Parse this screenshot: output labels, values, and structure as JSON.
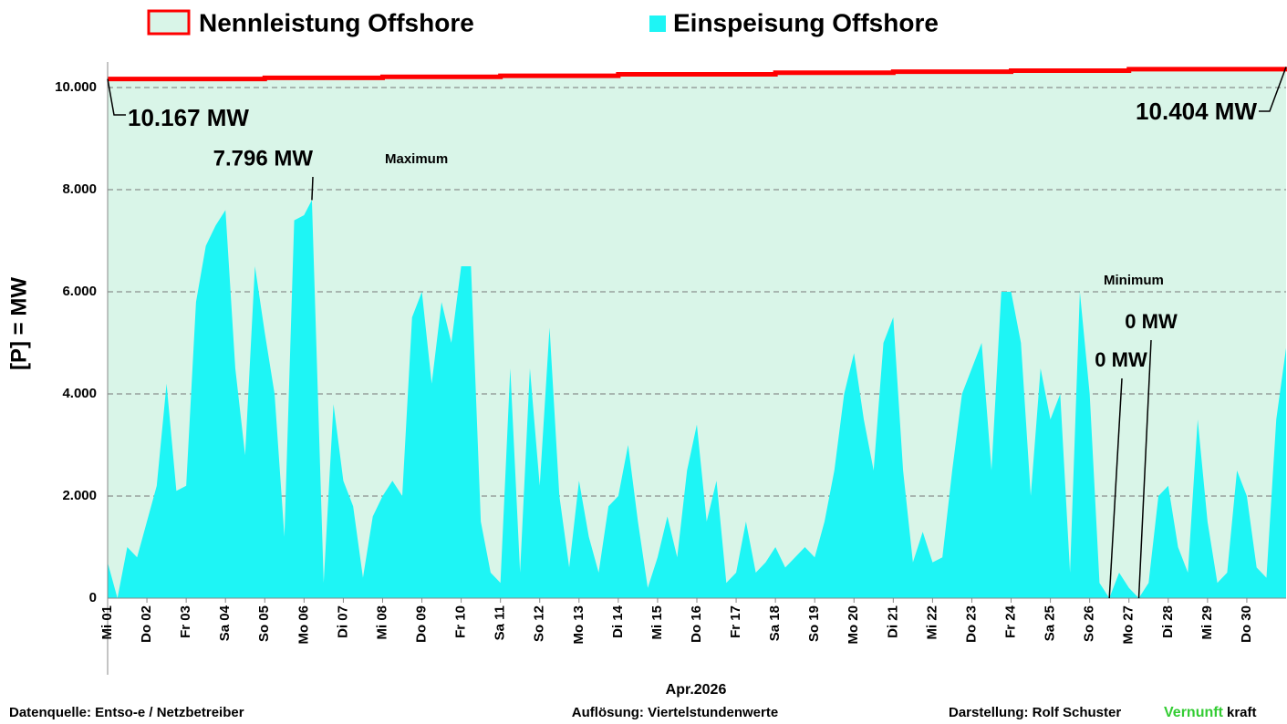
{
  "chart_data": {
    "type": "area",
    "title_legend": true,
    "xlabel": "Apr.2026",
    "ylabel": "[P] = MW",
    "xlim": [
      0,
      30
    ],
    "ylim": [
      0,
      10500
    ],
    "yticks": [
      0,
      {
        "value": 2000,
        "label": "2.000"
      },
      {
        "value": 4000,
        "label": "4.000"
      },
      {
        "value": 6000,
        "label": "6.000"
      },
      {
        "value": 8000,
        "label": "8.000"
      },
      {
        "value": 10000,
        "label": "10.000"
      }
    ],
    "xticks": [
      {
        "value": 0,
        "label": "Mi 01"
      },
      {
        "value": 1,
        "label": "Do 02"
      },
      {
        "value": 2,
        "label": "Fr 03"
      },
      {
        "value": 3,
        "label": "Sa 04"
      },
      {
        "value": 4,
        "label": "So 05"
      },
      {
        "value": 5,
        "label": "Mo 06"
      },
      {
        "value": 6,
        "label": "Di 07"
      },
      {
        "value": 7,
        "label": "Mi 08"
      },
      {
        "value": 8,
        "label": "Do 09"
      },
      {
        "value": 9,
        "label": "Fr 10"
      },
      {
        "value": 10,
        "label": "Sa 11"
      },
      {
        "value": 11,
        "label": "So 12"
      },
      {
        "value": 12,
        "label": "Mo 13"
      },
      {
        "value": 13,
        "label": "Di 14"
      },
      {
        "value": 14,
        "label": "Mi 15"
      },
      {
        "value": 15,
        "label": "Do 16"
      },
      {
        "value": 16,
        "label": "Fr 17"
      },
      {
        "value": 17,
        "label": "Sa 18"
      },
      {
        "value": 18,
        "label": "So 19"
      },
      {
        "value": 19,
        "label": "Mo 20"
      },
      {
        "value": 20,
        "label": "Di 21"
      },
      {
        "value": 21,
        "label": "Mi 22"
      },
      {
        "value": 22,
        "label": "Do 23"
      },
      {
        "value": 23,
        "label": "Fr 24"
      },
      {
        "value": 24,
        "label": "Sa 25"
      },
      {
        "value": 25,
        "label": "So 26"
      },
      {
        "value": 26,
        "label": "Mo 27"
      },
      {
        "value": 27,
        "label": "Di 28"
      },
      {
        "value": 28,
        "label": "Mi 29"
      },
      {
        "value": 29,
        "label": "Do 30"
      }
    ],
    "grid": true,
    "series": [
      {
        "name": "Nennleistung Offshore",
        "color": "#ff0000",
        "fill": "#d9f5e8",
        "step": true,
        "x": [
          0,
          4,
          7,
          10,
          13,
          17,
          20,
          23,
          26,
          30
        ],
        "values": [
          10167,
          10190,
          10210,
          10230,
          10260,
          10290,
          10310,
          10330,
          10360,
          10404
        ]
      },
      {
        "name": "Einspeisung Offshore",
        "color": "#1ef5f5",
        "x": [
          0,
          0.25,
          0.5,
          0.75,
          1,
          1.25,
          1.5,
          1.75,
          2,
          2.25,
          2.5,
          2.75,
          3,
          3.25,
          3.5,
          3.75,
          4,
          4.25,
          4.5,
          4.75,
          5,
          5.2,
          5.5,
          5.75,
          6,
          6.25,
          6.5,
          6.75,
          7,
          7.25,
          7.5,
          7.75,
          8,
          8.25,
          8.5,
          8.75,
          9,
          9.25,
          9.5,
          9.75,
          10,
          10.25,
          10.5,
          10.75,
          11,
          11.25,
          11.5,
          11.75,
          12,
          12.25,
          12.5,
          12.75,
          13,
          13.25,
          13.5,
          13.75,
          14,
          14.25,
          14.5,
          14.75,
          15,
          15.25,
          15.5,
          15.75,
          16,
          16.25,
          16.5,
          16.75,
          17,
          17.25,
          17.5,
          17.75,
          18,
          18.25,
          18.5,
          18.75,
          19,
          19.25,
          19.5,
          19.75,
          20,
          20.25,
          20.5,
          20.75,
          21,
          21.25,
          21.5,
          21.75,
          22,
          22.25,
          22.5,
          22.75,
          23,
          23.25,
          23.5,
          23.75,
          24,
          24.25,
          24.5,
          24.75,
          25,
          25.25,
          25.5,
          25.75,
          26,
          26.25,
          26.5,
          26.75,
          27,
          27.25,
          27.5,
          27.75,
          28,
          28.25,
          28.5,
          28.75,
          29,
          29.25,
          29.5,
          29.75,
          30
        ],
        "values": [
          700,
          0,
          1000,
          800,
          1500,
          2200,
          4200,
          2100,
          2200,
          5800,
          6900,
          7300,
          7600,
          4500,
          2800,
          6500,
          5200,
          4000,
          1200,
          7400,
          7500,
          7796,
          300,
          3800,
          2300,
          1800,
          400,
          1600,
          2000,
          2300,
          2000,
          5500,
          6000,
          4200,
          5800,
          5000,
          6500,
          6500,
          1500,
          500,
          300,
          4500,
          500,
          4500,
          2200,
          5300,
          2000,
          600,
          2300,
          1200,
          500,
          1800,
          2000,
          3000,
          1500,
          200,
          800,
          1600,
          800,
          2500,
          3400,
          1500,
          2300,
          300,
          500,
          1500,
          500,
          700,
          1000,
          600,
          800,
          1000,
          800,
          1500,
          2500,
          4000,
          4800,
          3500,
          2500,
          5000,
          5500,
          2500,
          700,
          1300,
          700,
          800,
          2500,
          4000,
          4500,
          5000,
          2500,
          6000,
          6000,
          5000,
          2000,
          4500,
          3500,
          4000,
          500,
          6000,
          4000,
          300,
          0,
          500,
          200,
          0,
          300,
          2000,
          2200,
          1000,
          500,
          3500,
          1500,
          300,
          500,
          2500,
          2000,
          600,
          400,
          3500,
          4900
        ]
      }
    ],
    "annotations": [
      {
        "label": "10.167 MW",
        "value": 10167,
        "x": 0
      },
      {
        "label": "10.404 MW",
        "value": 10404,
        "x": 30
      },
      {
        "label": "7.796 MW",
        "value": 7796,
        "x": 5.2
      },
      {
        "label": "0 MW",
        "value": 0,
        "x": 25.5
      },
      {
        "label": "0 MW",
        "value": 0,
        "x": 26.25
      }
    ],
    "max_label": "Maximum",
    "min_label": "Minimum",
    "footer": {
      "source": "Datenquelle:  Entso-e  / Netzbetreiber",
      "resolution": "Auflösung: Viertelstundenwerte",
      "author": "Darstellung:  Rolf Schuster",
      "brand_a": "Vernunft",
      "brand_b": "kraft"
    }
  }
}
